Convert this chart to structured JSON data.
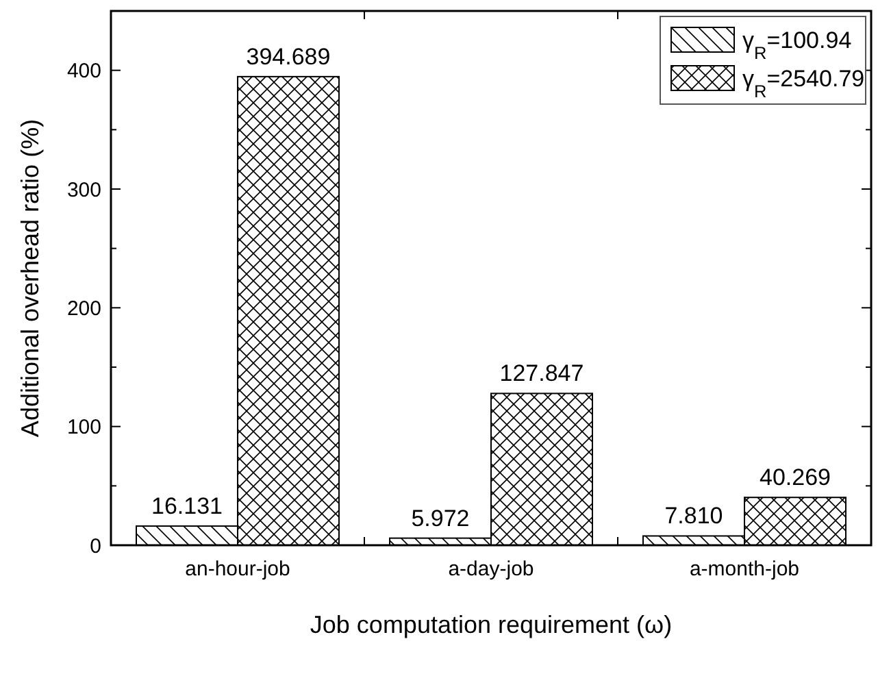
{
  "chart_data": {
    "type": "bar",
    "xlabel": "Job computation requirement (ω)",
    "ylabel": "Additional overhead ratio (%)",
    "categories": [
      "an-hour-job",
      "a-day-job",
      "a-month-job"
    ],
    "series": [
      {
        "name": "γ$_{R}$=100.94",
        "color": "#000000",
        "values": [
          16.131,
          5.972,
          7.81
        ],
        "value_labels": [
          "16.131",
          "5.972",
          "7.810"
        ]
      },
      {
        "name": "γ$_{R}$=2540.79",
        "color": "#000000",
        "values": [
          394.689,
          127.847,
          40.269
        ],
        "value_labels": [
          "394.689",
          "127.847",
          "40.269"
        ]
      }
    ],
    "ylim": [
      0,
      450
    ],
    "yticks": [
      0,
      {
        "value": 50,
        "label": null
      },
      100,
      {
        "value": 150,
        "label": null
      },
      200,
      {
        "value": 250,
        "label": null
      },
      300,
      {
        "value": 350,
        "label": null
      },
      400
    ],
    "grid": false,
    "legend": "top right"
  }
}
